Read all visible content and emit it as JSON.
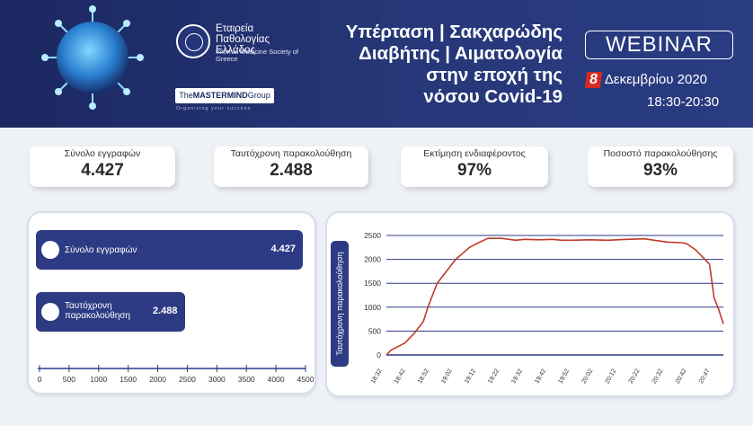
{
  "banner": {
    "society_name": "Εταιρεία Παθολογίας Ελλάδος",
    "society_en": "Internal Medicine Society of Greece",
    "mastermind_the": "The",
    "mastermind_name": "MASTERMIND",
    "mastermind_group": "Group",
    "mastermind_tagline": "Organizing your success",
    "title_line1": "Υπέρταση | Σακχαρώδης",
    "title_line2": "Διαβήτης | Αιματολογία",
    "title_line3": "στην εποχή της",
    "title_line4": "νόσου Covid-19",
    "webinar": "WEBINAR",
    "date_day": "8",
    "date_rest": "Δεκεμβρίου 2020",
    "time": "18:30-20:30"
  },
  "stats": [
    {
      "label": "Σύνολο εγγραφών",
      "value": "4.427"
    },
    {
      "label": "Ταυτόχρονη παρακολούθηση",
      "value": "2.488"
    },
    {
      "label": "Εκτίμηση ενδιαφέροντος",
      "value": "97%"
    },
    {
      "label": "Ποσοστό παρακολούθησης",
      "value": "93%"
    }
  ],
  "chart_data": [
    {
      "type": "bar",
      "orientation": "horizontal",
      "categories": [
        "Σύνολο εγγραφών",
        "Ταυτόχρονη παρακολούθηση"
      ],
      "values": [
        4427,
        2488
      ],
      "value_labels": [
        "4.427",
        "2.488"
      ],
      "xlim": [
        0,
        4500
      ],
      "xticks": [
        "0",
        "500",
        "1000",
        "1500",
        "2000",
        "2500",
        "3000",
        "3500",
        "4000",
        "4500"
      ],
      "colors": {
        "bar": "#2d3a84"
      }
    },
    {
      "type": "line",
      "ylabel": "Ταυτόχρονη παρακολούθηση",
      "ylim": [
        0,
        2500
      ],
      "yticks": [
        "0",
        "500",
        "1000",
        "1500",
        "2000",
        "2500"
      ],
      "xticks": [
        "18:32",
        "18:42",
        "18:52",
        "19:02",
        "19:12",
        "19:22",
        "19:32",
        "19:42",
        "19:52",
        "20:02",
        "20:12",
        "20:22",
        "20:32",
        "20:42",
        "20:47"
      ],
      "grid": "horizontal",
      "x": [
        0,
        1,
        4,
        6,
        8,
        9,
        11,
        13,
        15,
        18,
        20,
        22,
        25,
        28,
        30,
        33,
        36,
        38,
        40,
        44,
        48,
        52,
        56,
        58,
        61,
        64,
        65,
        67,
        70,
        71,
        72,
        73
      ],
      "y": [
        0,
        100,
        250,
        450,
        700,
        1000,
        1500,
        1750,
        2000,
        2250,
        2350,
        2440,
        2440,
        2400,
        2420,
        2410,
        2420,
        2400,
        2400,
        2410,
        2400,
        2420,
        2430,
        2400,
        2360,
        2350,
        2330,
        2200,
        1900,
        1200,
        950,
        650
      ],
      "colors": {
        "line": "#c0392b",
        "axis": "#2d3a84"
      }
    }
  ]
}
